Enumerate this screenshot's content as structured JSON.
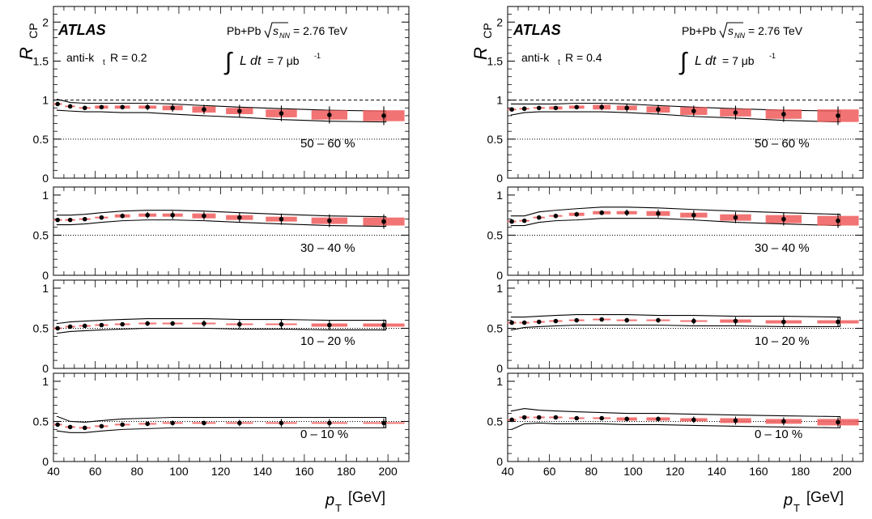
{
  "figure": {
    "ylabel": "R",
    "ylabel_sub": "CP",
    "xlabel": "p",
    "xlabel_sub": "T",
    "xlabel_unit": "[GeV]",
    "atlas_label": "ATLAS",
    "collision_prefix": "Pb+Pb",
    "sqrt_s": "s",
    "sqrt_s_sub": "NN",
    "energy": "= 2.76 TeV",
    "lumi_integral": "∫",
    "lumi_text": "L dt",
    "lumi_value": "= 7 μb",
    "lumi_exp": "-1",
    "x_ticks": [
      "40",
      "60",
      "80",
      "100",
      "120",
      "140",
      "160",
      "180",
      "200"
    ],
    "colors": {
      "systematic": "#f05a5a",
      "points": "#000000",
      "reference": "#000000"
    }
  },
  "chart_data": [
    {
      "type": "scatter",
      "jet_label_prefix": "anti-k",
      "jet_label_sub": "t",
      "jet_label_suffix": "R = 0.2",
      "xlim": [
        40,
        210
      ],
      "panels": [
        {
          "centrality": "50 – 60 %",
          "ylim": [
            0,
            2.2
          ],
          "y_ticks": [
            "0",
            "0.5",
            "1",
            "1.5",
            "2"
          ],
          "x": [
            42,
            48,
            55,
            63,
            73,
            85,
            97,
            112,
            129,
            149,
            172,
            198
          ],
          "y": [
            0.95,
            0.92,
            0.9,
            0.91,
            0.91,
            0.91,
            0.9,
            0.88,
            0.86,
            0.83,
            0.81,
            0.8
          ],
          "stat": [
            0.02,
            0.02,
            0.02,
            0.02,
            0.03,
            0.04,
            0.05,
            0.06,
            0.08,
            0.1,
            0.11,
            0.12
          ],
          "syst": [
            0.01,
            0.01,
            0.01,
            0.02,
            0.02,
            0.02,
            0.03,
            0.04,
            0.04,
            0.05,
            0.06,
            0.07
          ],
          "band_low": [
            0.87,
            0.86,
            0.85,
            0.85,
            0.84,
            0.84,
            0.82,
            0.8,
            0.78,
            0.75,
            0.73,
            0.72
          ],
          "band_high": [
            1.01,
            0.97,
            0.96,
            0.96,
            0.96,
            0.96,
            0.95,
            0.93,
            0.91,
            0.89,
            0.87,
            0.86
          ]
        },
        {
          "centrality": "30 – 40 %",
          "ylim": [
            0,
            1.1
          ],
          "y_ticks": [
            "0",
            "0.5",
            "1"
          ],
          "x": [
            42,
            48,
            55,
            63,
            73,
            85,
            97,
            112,
            129,
            149,
            172,
            198
          ],
          "y": [
            0.69,
            0.69,
            0.7,
            0.72,
            0.74,
            0.75,
            0.75,
            0.74,
            0.72,
            0.7,
            0.68,
            0.67
          ],
          "stat": [
            0.02,
            0.02,
            0.02,
            0.02,
            0.03,
            0.04,
            0.05,
            0.05,
            0.06,
            0.07,
            0.08,
            0.09
          ],
          "syst": [
            0.01,
            0.01,
            0.01,
            0.01,
            0.02,
            0.02,
            0.02,
            0.03,
            0.03,
            0.03,
            0.04,
            0.05
          ],
          "band_low": [
            0.63,
            0.63,
            0.64,
            0.66,
            0.68,
            0.69,
            0.69,
            0.68,
            0.66,
            0.64,
            0.62,
            0.61
          ],
          "band_high": [
            0.75,
            0.75,
            0.76,
            0.78,
            0.8,
            0.81,
            0.81,
            0.8,
            0.78,
            0.76,
            0.74,
            0.73
          ]
        },
        {
          "centrality": "10 – 20 %",
          "ylim": [
            0,
            1.1
          ],
          "y_ticks": [
            "0",
            "0.5",
            "1"
          ],
          "x": [
            42,
            48,
            55,
            63,
            73,
            85,
            97,
            112,
            129,
            149,
            172,
            198
          ],
          "y": [
            0.5,
            0.52,
            0.53,
            0.54,
            0.55,
            0.56,
            0.56,
            0.56,
            0.55,
            0.55,
            0.54,
            0.54
          ],
          "stat": [
            0.02,
            0.02,
            0.02,
            0.02,
            0.02,
            0.03,
            0.03,
            0.04,
            0.05,
            0.06,
            0.06,
            0.07
          ],
          "syst": [
            0.01,
            0.01,
            0.01,
            0.01,
            0.01,
            0.01,
            0.01,
            0.01,
            0.01,
            0.01,
            0.02,
            0.02
          ],
          "band_low": [
            0.44,
            0.46,
            0.47,
            0.48,
            0.49,
            0.5,
            0.5,
            0.5,
            0.49,
            0.49,
            0.48,
            0.48
          ],
          "band_high": [
            0.56,
            0.58,
            0.59,
            0.6,
            0.61,
            0.62,
            0.62,
            0.62,
            0.61,
            0.61,
            0.6,
            0.6
          ]
        },
        {
          "centrality": "0 – 10 %",
          "ylim": [
            0,
            1.1
          ],
          "y_ticks": [
            "0",
            "0.5",
            "1"
          ],
          "x": [
            42,
            48,
            55,
            63,
            73,
            85,
            97,
            112,
            129,
            149,
            172,
            198
          ],
          "y": [
            0.46,
            0.43,
            0.42,
            0.44,
            0.46,
            0.47,
            0.48,
            0.48,
            0.48,
            0.48,
            0.48,
            0.48
          ],
          "stat": [
            0.02,
            0.02,
            0.02,
            0.02,
            0.02,
            0.02,
            0.03,
            0.03,
            0.04,
            0.05,
            0.05,
            0.06
          ],
          "syst": [
            0.01,
            0.01,
            0.01,
            0.01,
            0.01,
            0.01,
            0.01,
            0.01,
            0.01,
            0.01,
            0.01,
            0.01
          ],
          "band_low": [
            0.38,
            0.36,
            0.36,
            0.38,
            0.4,
            0.41,
            0.42,
            0.42,
            0.42,
            0.42,
            0.42,
            0.42
          ],
          "band_high": [
            0.56,
            0.5,
            0.49,
            0.51,
            0.53,
            0.54,
            0.55,
            0.55,
            0.55,
            0.55,
            0.55,
            0.55
          ]
        }
      ]
    },
    {
      "type": "scatter",
      "jet_label_prefix": "anti-k",
      "jet_label_sub": "t",
      "jet_label_suffix": "R = 0.4",
      "xlim": [
        40,
        210
      ],
      "panels": [
        {
          "centrality": "50 – 60 %",
          "ylim": [
            0,
            2.2
          ],
          "y_ticks": [
            "0",
            "0.5",
            "1",
            "1.5",
            "2"
          ],
          "x": [
            42,
            48,
            55,
            63,
            73,
            85,
            97,
            112,
            129,
            149,
            172,
            198
          ],
          "y": [
            0.88,
            0.89,
            0.9,
            0.9,
            0.91,
            0.91,
            0.9,
            0.88,
            0.86,
            0.84,
            0.82,
            0.8
          ],
          "stat": [
            0.02,
            0.02,
            0.02,
            0.02,
            0.03,
            0.04,
            0.05,
            0.06,
            0.07,
            0.09,
            0.1,
            0.12
          ],
          "syst": [
            0.01,
            0.01,
            0.01,
            0.02,
            0.02,
            0.03,
            0.03,
            0.04,
            0.05,
            0.05,
            0.06,
            0.08
          ],
          "band_low": [
            0.81,
            0.84,
            0.85,
            0.85,
            0.85,
            0.85,
            0.84,
            0.82,
            0.79,
            0.77,
            0.74,
            0.72
          ],
          "band_high": [
            0.95,
            0.95,
            0.95,
            0.95,
            0.96,
            0.96,
            0.95,
            0.93,
            0.91,
            0.89,
            0.87,
            0.86
          ]
        },
        {
          "centrality": "30 – 40 %",
          "ylim": [
            0,
            1.1
          ],
          "y_ticks": [
            "0",
            "0.5",
            "1"
          ],
          "x": [
            42,
            48,
            55,
            63,
            73,
            85,
            97,
            112,
            129,
            149,
            172,
            198
          ],
          "y": [
            0.67,
            0.68,
            0.72,
            0.74,
            0.76,
            0.78,
            0.78,
            0.77,
            0.75,
            0.72,
            0.7,
            0.68
          ],
          "stat": [
            0.02,
            0.02,
            0.02,
            0.02,
            0.03,
            0.03,
            0.04,
            0.05,
            0.06,
            0.07,
            0.08,
            0.09
          ],
          "syst": [
            0.01,
            0.01,
            0.01,
            0.01,
            0.02,
            0.02,
            0.02,
            0.03,
            0.03,
            0.04,
            0.05,
            0.06
          ],
          "band_low": [
            0.62,
            0.62,
            0.66,
            0.68,
            0.69,
            0.71,
            0.71,
            0.71,
            0.69,
            0.66,
            0.64,
            0.62
          ],
          "band_high": [
            0.74,
            0.74,
            0.79,
            0.81,
            0.83,
            0.85,
            0.85,
            0.84,
            0.82,
            0.8,
            0.78,
            0.76
          ]
        },
        {
          "centrality": "10 – 20 %",
          "ylim": [
            0,
            1.1
          ],
          "y_ticks": [
            "0",
            "0.5",
            "1"
          ],
          "x": [
            42,
            48,
            55,
            63,
            73,
            85,
            97,
            112,
            129,
            149,
            172,
            198
          ],
          "y": [
            0.57,
            0.57,
            0.58,
            0.59,
            0.6,
            0.61,
            0.6,
            0.6,
            0.59,
            0.59,
            0.58,
            0.58
          ],
          "stat": [
            0.02,
            0.02,
            0.02,
            0.02,
            0.02,
            0.02,
            0.03,
            0.03,
            0.04,
            0.05,
            0.06,
            0.06
          ],
          "syst": [
            0.01,
            0.01,
            0.01,
            0.01,
            0.01,
            0.01,
            0.01,
            0.01,
            0.01,
            0.02,
            0.02,
            0.02
          ],
          "band_low": [
            0.48,
            0.51,
            0.52,
            0.53,
            0.54,
            0.54,
            0.54,
            0.54,
            0.53,
            0.53,
            0.52,
            0.52
          ],
          "band_high": [
            0.64,
            0.64,
            0.65,
            0.66,
            0.67,
            0.67,
            0.67,
            0.66,
            0.66,
            0.65,
            0.65,
            0.64
          ]
        },
        {
          "centrality": "0 – 10 %",
          "ylim": [
            0,
            1.1
          ],
          "y_ticks": [
            "0",
            "0.5",
            "1"
          ],
          "x": [
            42,
            48,
            55,
            63,
            73,
            85,
            97,
            112,
            129,
            149,
            172,
            198
          ],
          "y": [
            0.52,
            0.55,
            0.55,
            0.55,
            0.54,
            0.54,
            0.53,
            0.53,
            0.52,
            0.51,
            0.5,
            0.49
          ],
          "stat": [
            0.02,
            0.02,
            0.02,
            0.02,
            0.02,
            0.02,
            0.03,
            0.03,
            0.04,
            0.05,
            0.05,
            0.06
          ],
          "syst": [
            0.01,
            0.01,
            0.01,
            0.01,
            0.01,
            0.01,
            0.02,
            0.02,
            0.02,
            0.03,
            0.03,
            0.04
          ],
          "band_low": [
            0.4,
            0.47,
            0.48,
            0.47,
            0.47,
            0.47,
            0.46,
            0.46,
            0.45,
            0.44,
            0.43,
            0.42
          ],
          "band_high": [
            0.63,
            0.66,
            0.64,
            0.63,
            0.62,
            0.61,
            0.6,
            0.6,
            0.59,
            0.58,
            0.57,
            0.56
          ]
        }
      ]
    }
  ]
}
